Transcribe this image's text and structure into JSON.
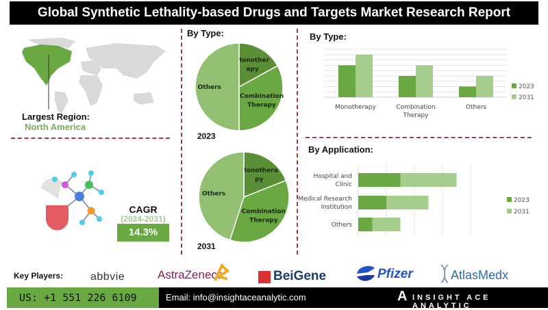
{
  "title": "Global Synthetic Lethality-based Drugs and Targets Market Research Report",
  "region": {
    "label": "Largest Region:",
    "value": "North America"
  },
  "cagr": {
    "label": "CAGR",
    "period": "(2024-2031)",
    "value": "14.3%"
  },
  "colors": {
    "dark": "#5a8f36",
    "mid": "#6aa842",
    "light": "#a7cd8c",
    "others_pie": "#93bf73",
    "accent_text": "#79ad57",
    "divider": "#a33a46"
  },
  "chart_data": [
    {
      "type": "pie",
      "title": "By Type:",
      "label": "2023",
      "slices": [
        {
          "name": "Monotherapy",
          "label": "Monother apy",
          "value": 17
        },
        {
          "name": "Combination Therapy",
          "label": "Combination Therapy",
          "value": 33
        },
        {
          "name": "Others",
          "label": "Others",
          "value": 50
        }
      ]
    },
    {
      "type": "pie",
      "label": "2031",
      "slices": [
        {
          "name": "Monotherapy",
          "label": "Monothera py",
          "value": 19
        },
        {
          "name": "Combination Therapy",
          "label": "Combination Therapy",
          "value": 36
        },
        {
          "name": "Others",
          "label": "Others",
          "value": 45
        }
      ]
    },
    {
      "type": "bar",
      "title": "By  Type:",
      "categories": [
        "Monotherapy",
        "Combination Therapy",
        "Others"
      ],
      "series": [
        {
          "name": "2023",
          "values": [
            6,
            4,
            2
          ]
        },
        {
          "name": "2031",
          "values": [
            8,
            6,
            4
          ]
        }
      ],
      "ylim": [
        0,
        9
      ],
      "grid": true,
      "legend": "right"
    },
    {
      "type": "bar",
      "orientation": "horizontal",
      "stacked": true,
      "title": "By Application:",
      "categories": [
        "Hospital and Clinic",
        "Medical Research Institution",
        "Others"
      ],
      "series": [
        {
          "name": "2023",
          "values": [
            1.5,
            1.0,
            0.5
          ]
        },
        {
          "name": "2031",
          "values": [
            2.0,
            1.5,
            1.0
          ]
        }
      ],
      "xlim": [
        0,
        5
      ],
      "grid": true,
      "legend": "right"
    }
  ],
  "key_players": {
    "label": "Key Players:",
    "companies": [
      "abbvie",
      "AstraZeneca",
      "BeiGene",
      "Pfizer",
      "AtlasMedx"
    ]
  },
  "footer": {
    "phone": "US: +1 551 226 6109",
    "email": "Email: info@insightaceanalytic.com",
    "brand": "INSIGHT ACE ANALYTIC"
  }
}
